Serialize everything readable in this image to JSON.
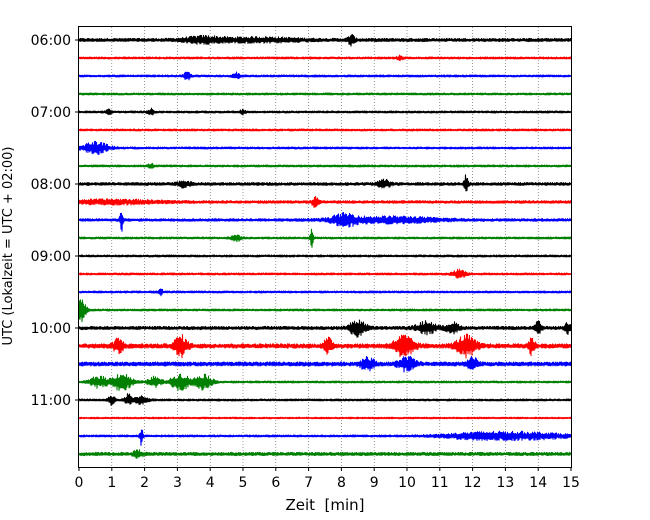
{
  "chart_data": {
    "type": "line",
    "title": "",
    "xlabel": "Zeit  [min]",
    "ylabel": "UTC (Lokalzeit = UTC + 02:00)",
    "xlim": [
      0,
      15
    ],
    "x_ticks": [
      "0",
      "1",
      "2",
      "3",
      "4",
      "5",
      "6",
      "7",
      "8",
      "9",
      "10",
      "11",
      "12",
      "13",
      "14",
      "15"
    ],
    "y_ticks": [
      "06:00",
      "07:00",
      "08:00",
      "09:00",
      "10:00",
      "11:00"
    ],
    "row_interval_min": 15,
    "grid": "vertical dotted lines at each minute",
    "legend": "none",
    "color_cycle": [
      "#000000",
      "#ff0000",
      "#0000ff",
      "#008000"
    ],
    "series": [
      {
        "start": "06:00",
        "color": "#000000",
        "noise": 1.6,
        "events": [
          {
            "t": 3.8,
            "amp": 3,
            "dur": 0.6
          },
          {
            "t": 5.5,
            "amp": 2,
            "dur": 1.2
          },
          {
            "t": 8.3,
            "amp": 5,
            "dur": 0.1
          }
        ]
      },
      {
        "start": "06:15",
        "color": "#ff0000",
        "noise": 1.0,
        "events": [
          {
            "t": 9.8,
            "amp": 2,
            "dur": 0.1
          }
        ]
      },
      {
        "start": "06:30",
        "color": "#0000ff",
        "noise": 1.0,
        "events": [
          {
            "t": 3.3,
            "amp": 4,
            "dur": 0.1
          },
          {
            "t": 4.8,
            "amp": 3,
            "dur": 0.1
          }
        ]
      },
      {
        "start": "06:45",
        "color": "#008000",
        "noise": 1.0,
        "events": []
      },
      {
        "start": "07:00",
        "color": "#000000",
        "noise": 1.0,
        "events": [
          {
            "t": 0.9,
            "amp": 2,
            "dur": 0.1
          },
          {
            "t": 2.2,
            "amp": 3,
            "dur": 0.1
          },
          {
            "t": 5.0,
            "amp": 2,
            "dur": 0.1
          }
        ]
      },
      {
        "start": "07:15",
        "color": "#ff0000",
        "noise": 1.0,
        "events": []
      },
      {
        "start": "07:30",
        "color": "#0000ff",
        "noise": 1.0,
        "events": [
          {
            "t": 0.5,
            "amp": 6,
            "dur": 0.4
          }
        ]
      },
      {
        "start": "07:45",
        "color": "#008000",
        "noise": 1.0,
        "events": [
          {
            "t": 2.2,
            "amp": 2,
            "dur": 0.1
          }
        ]
      },
      {
        "start": "08:00",
        "color": "#000000",
        "noise": 1.4,
        "events": [
          {
            "t": 3.2,
            "amp": 3,
            "dur": 0.2
          },
          {
            "t": 9.3,
            "amp": 4,
            "dur": 0.2
          },
          {
            "t": 11.8,
            "amp": 9,
            "dur": 0.06
          }
        ]
      },
      {
        "start": "08:15",
        "color": "#ff0000",
        "noise": 1.3,
        "events": [
          {
            "t": 1.0,
            "amp": 2,
            "dur": 1.5
          },
          {
            "t": 7.2,
            "amp": 5,
            "dur": 0.1
          }
        ]
      },
      {
        "start": "08:30",
        "color": "#0000ff",
        "noise": 1.3,
        "events": [
          {
            "t": 1.3,
            "amp": 11,
            "dur": 0.05
          },
          {
            "t": 8.1,
            "amp": 5,
            "dur": 0.4
          },
          {
            "t": 9.5,
            "amp": 3,
            "dur": 1.5
          }
        ]
      },
      {
        "start": "08:45",
        "color": "#008000",
        "noise": 1.0,
        "events": [
          {
            "t": 4.8,
            "amp": 3,
            "dur": 0.15
          },
          {
            "t": 7.1,
            "amp": 9,
            "dur": 0.05
          }
        ]
      },
      {
        "start": "09:00",
        "color": "#000000",
        "noise": 1.0,
        "events": []
      },
      {
        "start": "09:15",
        "color": "#ff0000",
        "noise": 1.0,
        "events": [
          {
            "t": 11.6,
            "amp": 4,
            "dur": 0.2
          }
        ]
      },
      {
        "start": "09:30",
        "color": "#0000ff",
        "noise": 1.0,
        "events": [
          {
            "t": 2.5,
            "amp": 4,
            "dur": 0.05
          }
        ]
      },
      {
        "start": "09:45",
        "color": "#008000",
        "noise": 1.0,
        "events": [
          {
            "t": 0.05,
            "amp": 12,
            "dur": 0.15
          }
        ]
      },
      {
        "start": "10:00",
        "color": "#000000",
        "noise": 1.6,
        "events": [
          {
            "t": 8.5,
            "amp": 8,
            "dur": 0.25
          },
          {
            "t": 10.6,
            "amp": 6,
            "dur": 0.3
          },
          {
            "t": 11.4,
            "amp": 5,
            "dur": 0.2
          },
          {
            "t": 14.0,
            "amp": 6,
            "dur": 0.1
          },
          {
            "t": 14.9,
            "amp": 5,
            "dur": 0.1
          }
        ]
      },
      {
        "start": "10:15",
        "color": "#ff0000",
        "noise": 2.2,
        "events": [
          {
            "t": 1.2,
            "amp": 7,
            "dur": 0.15
          },
          {
            "t": 3.1,
            "amp": 10,
            "dur": 0.2
          },
          {
            "t": 7.6,
            "amp": 7,
            "dur": 0.15
          },
          {
            "t": 9.9,
            "amp": 10,
            "dur": 0.3
          },
          {
            "t": 11.8,
            "amp": 10,
            "dur": 0.3
          },
          {
            "t": 13.8,
            "amp": 8,
            "dur": 0.1
          }
        ]
      },
      {
        "start": "10:30",
        "color": "#0000ff",
        "noise": 2.0,
        "events": [
          {
            "t": 8.8,
            "amp": 7,
            "dur": 0.2
          },
          {
            "t": 10.0,
            "amp": 7,
            "dur": 0.25
          },
          {
            "t": 12.0,
            "amp": 6,
            "dur": 0.15
          }
        ]
      },
      {
        "start": "10:45",
        "color": "#008000",
        "noise": 1.0,
        "events": [
          {
            "t": 0.6,
            "amp": 6,
            "dur": 0.25
          },
          {
            "t": 1.3,
            "amp": 9,
            "dur": 0.3
          },
          {
            "t": 2.3,
            "amp": 5,
            "dur": 0.2
          },
          {
            "t": 3.1,
            "amp": 8,
            "dur": 0.3
          },
          {
            "t": 3.8,
            "amp": 8,
            "dur": 0.25
          }
        ]
      },
      {
        "start": "11:00",
        "color": "#000000",
        "noise": 1.0,
        "events": [
          {
            "t": 1.0,
            "amp": 5,
            "dur": 0.1
          },
          {
            "t": 1.5,
            "amp": 6,
            "dur": 0.1
          },
          {
            "t": 1.9,
            "amp": 4,
            "dur": 0.2
          }
        ]
      },
      {
        "start": "11:15",
        "color": "#ff0000",
        "noise": 0.8,
        "events": []
      },
      {
        "start": "11:30",
        "color": "#0000ff",
        "noise": 1.0,
        "events": [
          {
            "t": 1.9,
            "amp": 9,
            "dur": 0.05
          },
          {
            "t": 12.2,
            "amp": 3,
            "dur": 1.2
          },
          {
            "t": 13.8,
            "amp": 3,
            "dur": 1.2
          }
        ]
      },
      {
        "start": "11:45",
        "color": "#008000",
        "noise": 1.6,
        "events": [
          {
            "t": 1.8,
            "amp": 3,
            "dur": 0.15
          }
        ]
      }
    ]
  }
}
